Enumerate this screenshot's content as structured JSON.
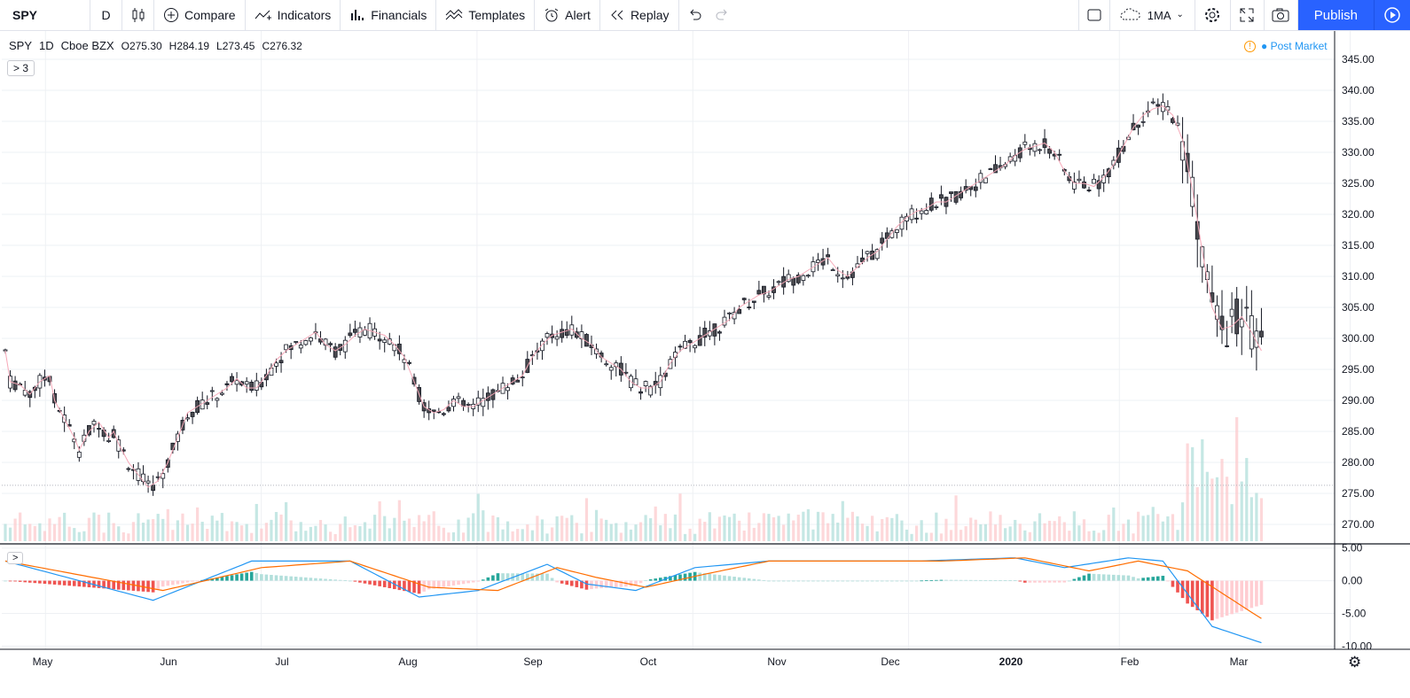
{
  "toolbar": {
    "symbol": "SPY",
    "interval": "D",
    "compare": "Compare",
    "indicators": "Indicators",
    "financials": "Financials",
    "templates": "Templates",
    "alert": "Alert",
    "replay": "Replay",
    "ma_label": "1MA",
    "publish": "Publish"
  },
  "legend": {
    "symbol": "SPY",
    "interval": "1D",
    "exchange": "Cboe BZX",
    "open": "O275.30",
    "high": "H284.19",
    "low": "L273.45",
    "close": "C276.32",
    "collapsed_count": "3",
    "post_market": "Post Market"
  },
  "colors": {
    "up_candle": "#ffffff",
    "down_candle": "#4a4a4f",
    "ma_line": "#f7a8b8",
    "volume_up": "#b2dfdb",
    "volume_down": "#fccbcd",
    "macd_line": "#2196f3",
    "signal_line": "#ff6d00",
    "hist_pos_strong": "#26a69a",
    "hist_pos_weak": "#b2dfdb",
    "hist_neg_strong": "#ef5350",
    "hist_neg_weak": "#ffcdd2"
  },
  "chart_data": {
    "type": "candlestick",
    "price_axis": {
      "ticks": [
        "345.00",
        "340.00",
        "335.00",
        "330.00",
        "325.00",
        "320.00",
        "315.00",
        "310.00",
        "305.00",
        "300.00",
        "295.00",
        "290.00",
        "285.00",
        "280.00",
        "275.00",
        "270.00"
      ],
      "ylim": [
        267,
        347
      ]
    },
    "macd_axis": {
      "ticks": [
        "5.00",
        "0.00",
        "-5.00",
        "-10.00"
      ],
      "ylim": [
        -10.5,
        5.5
      ]
    },
    "time_axis": [
      "May",
      "Jun",
      "Jul",
      "Aug",
      "Sep",
      "Oct",
      "Nov",
      "Dec",
      "2020",
      "Feb",
      "Mar"
    ],
    "price_series": [
      [
        1,
        293
      ],
      [
        3,
        292.5
      ],
      [
        5,
        291
      ],
      [
        7,
        293
      ],
      [
        9,
        294
      ],
      [
        10,
        290
      ],
      [
        12,
        287
      ],
      [
        14,
        284
      ],
      [
        15,
        282
      ],
      [
        17,
        285
      ],
      [
        19,
        286.5
      ],
      [
        21,
        284
      ],
      [
        22,
        285
      ],
      [
        23,
        283
      ],
      [
        25,
        280
      ],
      [
        27,
        278
      ],
      [
        29,
        276
      ],
      [
        31,
        277
      ],
      [
        33,
        280
      ],
      [
        35,
        284
      ],
      [
        37,
        288
      ],
      [
        39,
        289
      ],
      [
        41,
        290
      ],
      [
        43,
        291
      ],
      [
        45,
        292
      ],
      [
        47,
        293.5
      ],
      [
        49,
        292
      ],
      [
        51,
        292
      ],
      [
        53,
        294
      ],
      [
        55,
        296.5
      ],
      [
        57,
        298
      ],
      [
        59,
        299
      ],
      [
        61,
        300
      ],
      [
        63,
        301
      ],
      [
        65,
        299
      ],
      [
        67,
        298
      ],
      [
        69,
        299
      ],
      [
        71,
        300.5
      ],
      [
        73,
        301.5
      ],
      [
        75,
        301
      ],
      [
        77,
        300.5
      ],
      [
        79,
        299
      ],
      [
        81,
        297
      ],
      [
        83,
        293
      ],
      [
        85,
        289
      ],
      [
        87,
        288
      ],
      [
        89,
        288.5
      ],
      [
        91,
        290
      ],
      [
        93,
        289
      ],
      [
        95,
        289
      ],
      [
        97,
        290
      ],
      [
        99,
        291
      ],
      [
        101,
        292
      ],
      [
        103,
        293
      ],
      [
        105,
        294
      ],
      [
        107,
        297
      ],
      [
        109,
        299
      ],
      [
        111,
        300.5
      ],
      [
        113,
        301
      ],
      [
        115,
        301.5
      ],
      [
        117,
        300
      ],
      [
        119,
        299
      ],
      [
        121,
        297
      ],
      [
        123,
        296
      ],
      [
        125,
        295
      ],
      [
        127,
        293
      ],
      [
        129,
        292
      ],
      [
        131,
        292
      ],
      [
        133,
        293
      ],
      [
        135,
        296
      ],
      [
        137,
        298
      ],
      [
        139,
        299
      ],
      [
        141,
        300
      ],
      [
        143,
        301
      ],
      [
        145,
        302
      ],
      [
        147,
        303
      ],
      [
        149,
        305
      ],
      [
        151,
        306
      ],
      [
        153,
        307
      ],
      [
        155,
        307.5
      ],
      [
        157,
        308.5
      ],
      [
        159,
        309.5
      ],
      [
        161,
        310
      ],
      [
        163,
        311
      ],
      [
        165,
        312
      ],
      [
        167,
        313
      ],
      [
        169,
        311
      ],
      [
        171,
        310
      ],
      [
        173,
        311.5
      ],
      [
        175,
        313
      ],
      [
        177,
        314
      ],
      [
        179,
        316
      ],
      [
        181,
        318
      ],
      [
        183,
        319.5
      ],
      [
        185,
        320.5
      ],
      [
        187,
        321
      ],
      [
        189,
        322
      ],
      [
        191,
        322
      ],
      [
        193,
        323
      ],
      [
        195,
        324
      ],
      [
        197,
        325
      ],
      [
        199,
        326
      ],
      [
        201,
        327
      ],
      [
        203,
        328
      ],
      [
        205,
        329.5
      ],
      [
        207,
        330.5
      ],
      [
        209,
        331
      ],
      [
        211,
        331.5
      ],
      [
        213,
        330
      ],
      [
        215,
        327
      ],
      [
        217,
        325
      ],
      [
        219,
        325
      ],
      [
        221,
        324.5
      ],
      [
        223,
        326
      ],
      [
        225,
        328
      ],
      [
        227,
        331
      ],
      [
        229,
        334
      ],
      [
        231,
        336
      ],
      [
        233,
        337
      ],
      [
        235,
        337.5
      ],
      [
        237,
        336
      ],
      [
        239,
        332
      ],
      [
        241,
        324
      ],
      [
        243,
        314
      ],
      [
        245,
        305
      ],
      [
        247,
        301.5
      ],
      [
        249,
        302
      ],
      [
        251,
        303.5
      ],
      [
        253,
        301
      ],
      [
        255,
        298
      ]
    ],
    "macd": {
      "macd_line": [
        [
          0,
          3
        ],
        [
          30,
          -3
        ],
        [
          50,
          3
        ],
        [
          70,
          3
        ],
        [
          84,
          -2.5
        ],
        [
          96,
          -1.5
        ],
        [
          110,
          2.5
        ],
        [
          118,
          -0.5
        ],
        [
          128,
          -1.5
        ],
        [
          140,
          2
        ],
        [
          155,
          3
        ],
        [
          170,
          3
        ],
        [
          185,
          3
        ],
        [
          205,
          3.5
        ],
        [
          215,
          2
        ],
        [
          228,
          3.5
        ],
        [
          235,
          3
        ],
        [
          245,
          -7
        ],
        [
          255,
          -9.5
        ]
      ],
      "signal_line": [
        [
          0,
          3
        ],
        [
          32,
          -1.5
        ],
        [
          52,
          2
        ],
        [
          70,
          3
        ],
        [
          86,
          -1
        ],
        [
          100,
          -1.5
        ],
        [
          112,
          2
        ],
        [
          120,
          0.5
        ],
        [
          130,
          -1
        ],
        [
          142,
          1
        ],
        [
          155,
          3
        ],
        [
          170,
          3
        ],
        [
          190,
          3
        ],
        [
          207,
          3.5
        ],
        [
          220,
          1.5
        ],
        [
          230,
          3
        ],
        [
          240,
          1.5
        ],
        [
          255,
          -5.8
        ]
      ]
    }
  }
}
